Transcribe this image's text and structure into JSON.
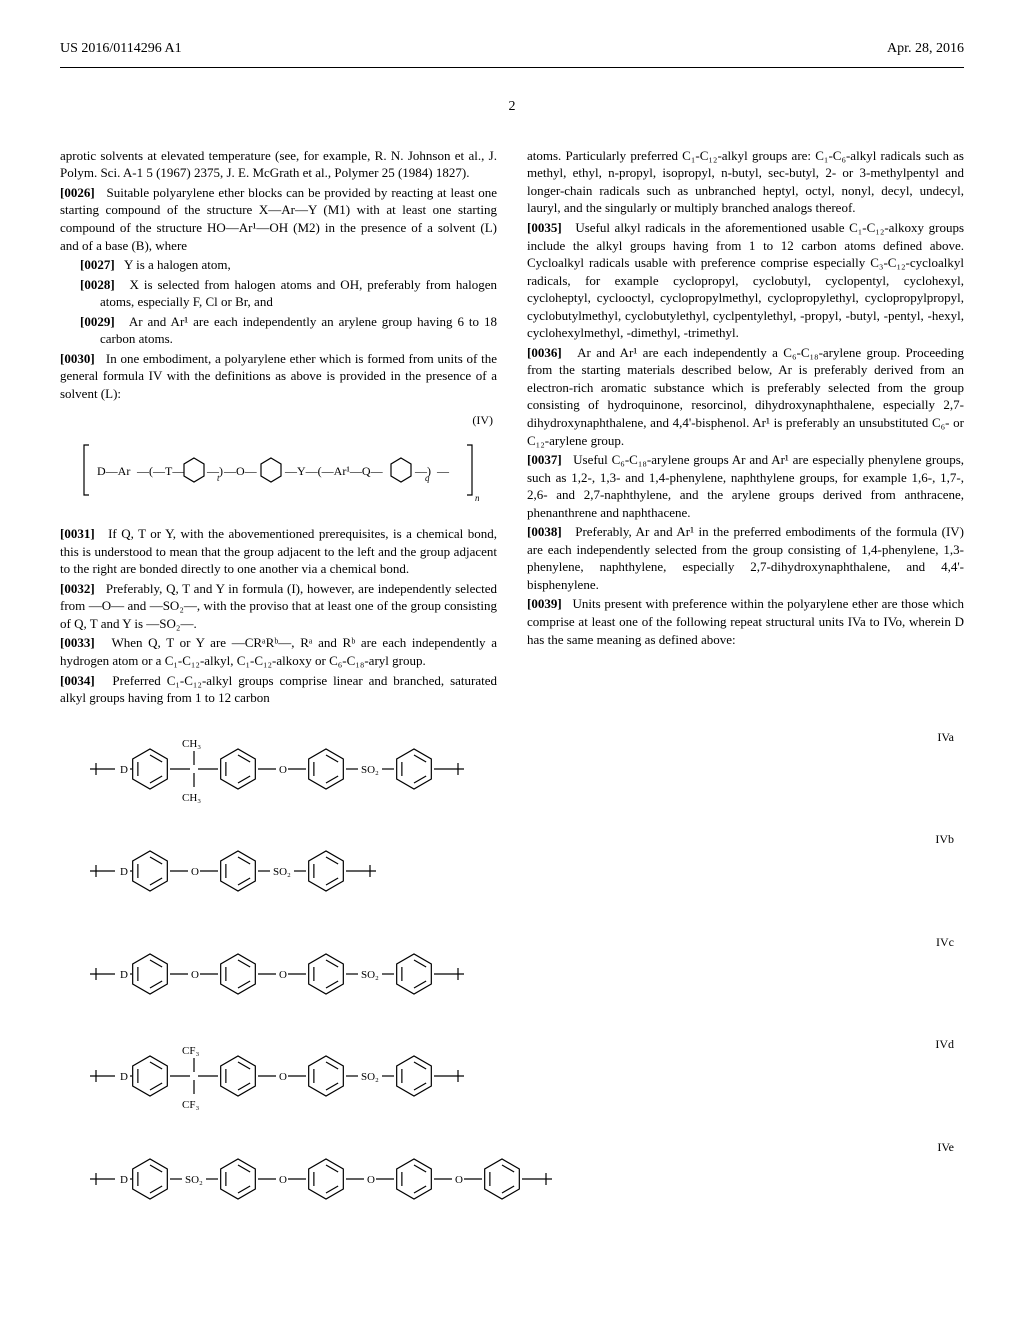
{
  "header": {
    "pub_number": "US 2016/0114296 A1",
    "pub_date": "Apr. 28, 2016"
  },
  "page_number": "2",
  "col_left": {
    "p_intro": "aprotic solvents at elevated temperature (see, for example, R. N. Johnson et al., J. Polym. Sci. A-1 5 (1967) 2375, J. E. McGrath et al., Polymer 25 (1984) 1827).",
    "p0026_num": "[0026]",
    "p0026": "Suitable polyarylene ether blocks can be provided by reacting at least one starting compound of the structure X—Ar—Y (M1) with at least one starting compound of the structure HO—Ar¹—OH (M2) in the presence of a solvent (L) and of a base (B), where",
    "p0027_num": "[0027]",
    "p0027": "Y is a halogen atom,",
    "p0028_num": "[0028]",
    "p0028": "X is selected from halogen atoms and OH, preferably from halogen atoms, especially F, Cl or Br, and",
    "p0029_num": "[0029]",
    "p0029": "Ar and Ar¹ are each independently an arylene group having 6 to 18 carbon atoms.",
    "p0030_num": "[0030]",
    "p0030": "In one embodiment, a polyarylene ether which is formed from units of the general formula IV with the definitions as above is provided in the presence of a solvent (L):",
    "formula_IV_label": "(IV)",
    "p0031_num": "[0031]",
    "p0031": "If Q, T or Y, with the abovementioned prerequisites, is a chemical bond, this is understood to mean that the group adjacent to the left and the group adjacent to the right are bonded directly to one another via a chemical bond.",
    "p0032_num": "[0032]",
    "p0032": "Preferably, Q, T and Y in formula (I), however, are independently selected from —O— and —SO₂—, with the proviso that at least one of the group consisting of Q, T and Y is —SO₂—.",
    "p0033_num": "[0033]",
    "p0033": "When Q, T or Y are —CRᵃRᵇ—, Rᵃ and Rᵇ are each independently a hydrogen atom or a C₁-C₁₂-alkyl, C₁-C₁₂-alkoxy or C₆-C₁₈-aryl group.",
    "p0034_num": "[0034]",
    "p0034": "Preferred C₁-C₁₂-alkyl groups comprise linear and branched, saturated alkyl groups having from 1 to 12 carbon"
  },
  "col_right": {
    "p_top": "atoms. Particularly preferred C₁-C₁₂-alkyl groups are: C₁-C₆-alkyl radicals such as methyl, ethyl, n-propyl, isopropyl, n-butyl, sec-butyl, 2- or 3-methylpentyl and longer-chain radicals such as unbranched heptyl, octyl, nonyl, decyl, undecyl, lauryl, and the singularly or multiply branched analogs thereof.",
    "p0035_num": "[0035]",
    "p0035": "Useful alkyl radicals in the aforementioned usable C₁-C₁₂-alkoxy groups include the alkyl groups having from 1 to 12 carbon atoms defined above. Cycloalkyl radicals usable with preference comprise especially C₃-C₁₂-cycloalkyl radicals, for example cyclopropyl, cyclobutyl, cyclopentyl, cyclohexyl, cycloheptyl, cyclooctyl, cyclopropylmethyl, cyclopropylethyl, cyclopropylpropyl, cyclobutylmethyl, cyclobutylethyl, cyclpentylethyl, -propyl, -butyl, -pentyl, -hexyl, cyclohexylmethyl, -dimethyl, -trimethyl.",
    "p0036_num": "[0036]",
    "p0036": "Ar and Ar¹ are each independently a C₆-C₁₈-arylene group. Proceeding from the starting materials described below, Ar is preferably derived from an electron-rich aromatic substance which is preferably selected from the group consisting of hydroquinone, resorcinol, dihydroxynaphthalene, especially 2,7-dihydroxynaphthalene, and 4,4'-bisphenol. Ar¹ is preferably an unsubstituted C₆- or C₁₂-arylene group.",
    "p0037_num": "[0037]",
    "p0037": "Useful C₆-C₁₈-arylene groups Ar and Ar¹ are especially phenylene groups, such as 1,2-, 1,3- and 1,4-phenylene, naphthylene groups, for example 1,6-, 1,7-, 2,6- and 2,7-naphthylene, and the arylene groups derived from anthracene, phenanthrene and naphthacene.",
    "p0038_num": "[0038]",
    "p0038": "Preferably, Ar and Ar¹ in the preferred embodiments of the formula (IV) are each independently selected from the group consisting of 1,4-phenylene, 1,3-phenylene, naphthylene, especially 2,7-dihydroxynaphthalene, and 4,4'-bisphenylene.",
    "p0039_num": "[0039]",
    "p0039": "Units present with preference within the polyarylene ether are those which comprise at least one of the following repeat structural units IVa to IVo, wherein D has the same meaning as defined above:"
  },
  "structures": {
    "items": [
      {
        "label": "IVa",
        "linkers": [
          "D",
          "C(CH3)2",
          "O",
          "SO2"
        ],
        "rings": 4,
        "top_sub": "CH₃",
        "bot_sub": "CH₃"
      },
      {
        "label": "IVb",
        "linkers": [
          "D",
          "O",
          "SO2"
        ],
        "rings": 3
      },
      {
        "label": "IVc",
        "linkers": [
          "D",
          "O",
          "O",
          "SO2"
        ],
        "rings": 4
      },
      {
        "label": "IVd",
        "linkers": [
          "D",
          "C(CF3)2",
          "O",
          "SO2"
        ],
        "rings": 4,
        "top_sub": "CF₃",
        "bot_sub": "CF₃"
      },
      {
        "label": "IVe",
        "linkers": [
          "D",
          "SO2",
          "O",
          "O",
          "O"
        ],
        "rings": 5
      }
    ],
    "styling": {
      "stroke": "#000000",
      "stroke_width": 1.2,
      "ring_radius": 20,
      "font_size": 11,
      "font_family": "Times New Roman"
    }
  },
  "formula_IV": {
    "text_parts": [
      "D",
      "Ar",
      "T",
      "O",
      "Y",
      "Ar¹",
      "Q"
    ],
    "subscripts": [
      "t",
      "q",
      "n"
    ]
  }
}
